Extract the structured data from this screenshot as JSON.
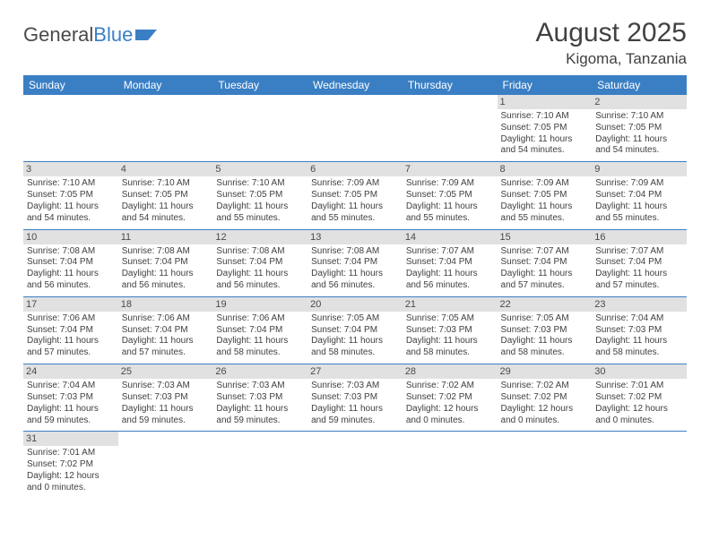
{
  "logo": {
    "text1": "General",
    "text2": "Blue"
  },
  "title": "August 2025",
  "location": "Kigoma, Tanzania",
  "colors": {
    "header_bg": "#3a7fc4",
    "header_fg": "#ffffff",
    "daybar_bg": "#e1e1e1",
    "rule": "#3a7fc4",
    "text": "#3f3f3f"
  },
  "weekdays": [
    "Sunday",
    "Monday",
    "Tuesday",
    "Wednesday",
    "Thursday",
    "Friday",
    "Saturday"
  ],
  "weeks": [
    [
      null,
      null,
      null,
      null,
      null,
      {
        "n": "1",
        "rise": "7:10 AM",
        "set": "7:05 PM",
        "dl": "11 hours and 54 minutes."
      },
      {
        "n": "2",
        "rise": "7:10 AM",
        "set": "7:05 PM",
        "dl": "11 hours and 54 minutes."
      }
    ],
    [
      {
        "n": "3",
        "rise": "7:10 AM",
        "set": "7:05 PM",
        "dl": "11 hours and 54 minutes."
      },
      {
        "n": "4",
        "rise": "7:10 AM",
        "set": "7:05 PM",
        "dl": "11 hours and 54 minutes."
      },
      {
        "n": "5",
        "rise": "7:10 AM",
        "set": "7:05 PM",
        "dl": "11 hours and 55 minutes."
      },
      {
        "n": "6",
        "rise": "7:09 AM",
        "set": "7:05 PM",
        "dl": "11 hours and 55 minutes."
      },
      {
        "n": "7",
        "rise": "7:09 AM",
        "set": "7:05 PM",
        "dl": "11 hours and 55 minutes."
      },
      {
        "n": "8",
        "rise": "7:09 AM",
        "set": "7:05 PM",
        "dl": "11 hours and 55 minutes."
      },
      {
        "n": "9",
        "rise": "7:09 AM",
        "set": "7:04 PM",
        "dl": "11 hours and 55 minutes."
      }
    ],
    [
      {
        "n": "10",
        "rise": "7:08 AM",
        "set": "7:04 PM",
        "dl": "11 hours and 56 minutes."
      },
      {
        "n": "11",
        "rise": "7:08 AM",
        "set": "7:04 PM",
        "dl": "11 hours and 56 minutes."
      },
      {
        "n": "12",
        "rise": "7:08 AM",
        "set": "7:04 PM",
        "dl": "11 hours and 56 minutes."
      },
      {
        "n": "13",
        "rise": "7:08 AM",
        "set": "7:04 PM",
        "dl": "11 hours and 56 minutes."
      },
      {
        "n": "14",
        "rise": "7:07 AM",
        "set": "7:04 PM",
        "dl": "11 hours and 56 minutes."
      },
      {
        "n": "15",
        "rise": "7:07 AM",
        "set": "7:04 PM",
        "dl": "11 hours and 57 minutes."
      },
      {
        "n": "16",
        "rise": "7:07 AM",
        "set": "7:04 PM",
        "dl": "11 hours and 57 minutes."
      }
    ],
    [
      {
        "n": "17",
        "rise": "7:06 AM",
        "set": "7:04 PM",
        "dl": "11 hours and 57 minutes."
      },
      {
        "n": "18",
        "rise": "7:06 AM",
        "set": "7:04 PM",
        "dl": "11 hours and 57 minutes."
      },
      {
        "n": "19",
        "rise": "7:06 AM",
        "set": "7:04 PM",
        "dl": "11 hours and 58 minutes."
      },
      {
        "n": "20",
        "rise": "7:05 AM",
        "set": "7:04 PM",
        "dl": "11 hours and 58 minutes."
      },
      {
        "n": "21",
        "rise": "7:05 AM",
        "set": "7:03 PM",
        "dl": "11 hours and 58 minutes."
      },
      {
        "n": "22",
        "rise": "7:05 AM",
        "set": "7:03 PM",
        "dl": "11 hours and 58 minutes."
      },
      {
        "n": "23",
        "rise": "7:04 AM",
        "set": "7:03 PM",
        "dl": "11 hours and 58 minutes."
      }
    ],
    [
      {
        "n": "24",
        "rise": "7:04 AM",
        "set": "7:03 PM",
        "dl": "11 hours and 59 minutes."
      },
      {
        "n": "25",
        "rise": "7:03 AM",
        "set": "7:03 PM",
        "dl": "11 hours and 59 minutes."
      },
      {
        "n": "26",
        "rise": "7:03 AM",
        "set": "7:03 PM",
        "dl": "11 hours and 59 minutes."
      },
      {
        "n": "27",
        "rise": "7:03 AM",
        "set": "7:03 PM",
        "dl": "11 hours and 59 minutes."
      },
      {
        "n": "28",
        "rise": "7:02 AM",
        "set": "7:02 PM",
        "dl": "12 hours and 0 minutes."
      },
      {
        "n": "29",
        "rise": "7:02 AM",
        "set": "7:02 PM",
        "dl": "12 hours and 0 minutes."
      },
      {
        "n": "30",
        "rise": "7:01 AM",
        "set": "7:02 PM",
        "dl": "12 hours and 0 minutes."
      }
    ],
    [
      {
        "n": "31",
        "rise": "7:01 AM",
        "set": "7:02 PM",
        "dl": "12 hours and 0 minutes."
      },
      null,
      null,
      null,
      null,
      null,
      null
    ]
  ],
  "labels": {
    "sunrise": "Sunrise:",
    "sunset": "Sunset:",
    "daylight": "Daylight:"
  }
}
